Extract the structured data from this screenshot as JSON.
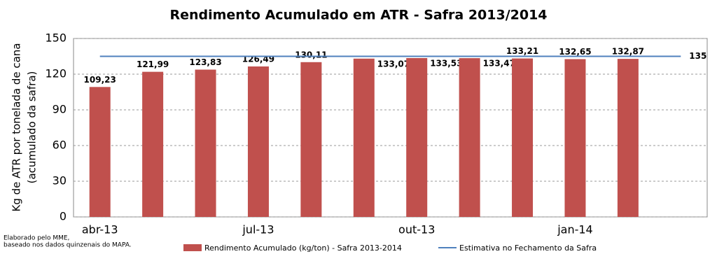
{
  "chart_data": {
    "type": "bar",
    "title": "Rendimento Acumulado em ATR - Safra 2013/2014",
    "y_label": [
      "Kg de ATR por tonelada de cana",
      "(acumulado da safra)"
    ],
    "note": [
      "Elaborado pelo MME,",
      "baseado nos dados quinzenais do MAPA."
    ],
    "categories": [
      "abr-13",
      null,
      null,
      "jul-13",
      null,
      null,
      "out-13",
      null,
      null,
      "jan-14",
      null,
      null
    ],
    "series": [
      {
        "name": "Rendimento Acumulado (kg/ton) - Safra 2013-2014",
        "type": "bar",
        "color": "#c0504d",
        "values": [
          109.23,
          121.99,
          123.83,
          126.49,
          130.11,
          133.07,
          133.53,
          133.47,
          133.21,
          132.65,
          132.87,
          null
        ],
        "value_labels": [
          "109,23",
          "121,99",
          "123,83",
          "126,49",
          "130,11",
          "133,07",
          "133,53",
          "133,47",
          "133,21",
          "132,65",
          "132,87",
          null
        ]
      },
      {
        "name": "Estimativa no Fechamento da Safra",
        "type": "line",
        "color": "#4f81bd",
        "values": [
          135,
          135,
          135,
          135,
          135,
          135,
          135,
          135,
          135,
          135,
          135,
          135
        ]
      }
    ],
    "ylim": [
      0,
      150
    ],
    "yticks": [
      0,
      30,
      60,
      90,
      120,
      150
    ],
    "grid": true
  }
}
